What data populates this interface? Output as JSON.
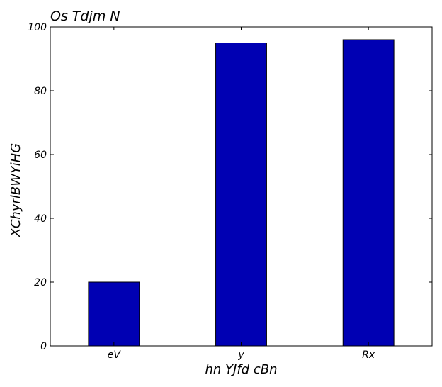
{
  "chart_data": {
    "type": "bar",
    "title": "Os Tdjm  N",
    "xlabel": "hn YJfd cBn",
    "ylabel": "XChyrlBWYiHG",
    "categories": [
      "eV",
      "y",
      "Rx"
    ],
    "values": [
      20,
      95,
      96
    ],
    "ylim": [
      0,
      100
    ],
    "yticks": [
      0,
      20,
      40,
      60,
      80,
      100
    ],
    "grid": false,
    "bar_color": "#0000b3"
  }
}
